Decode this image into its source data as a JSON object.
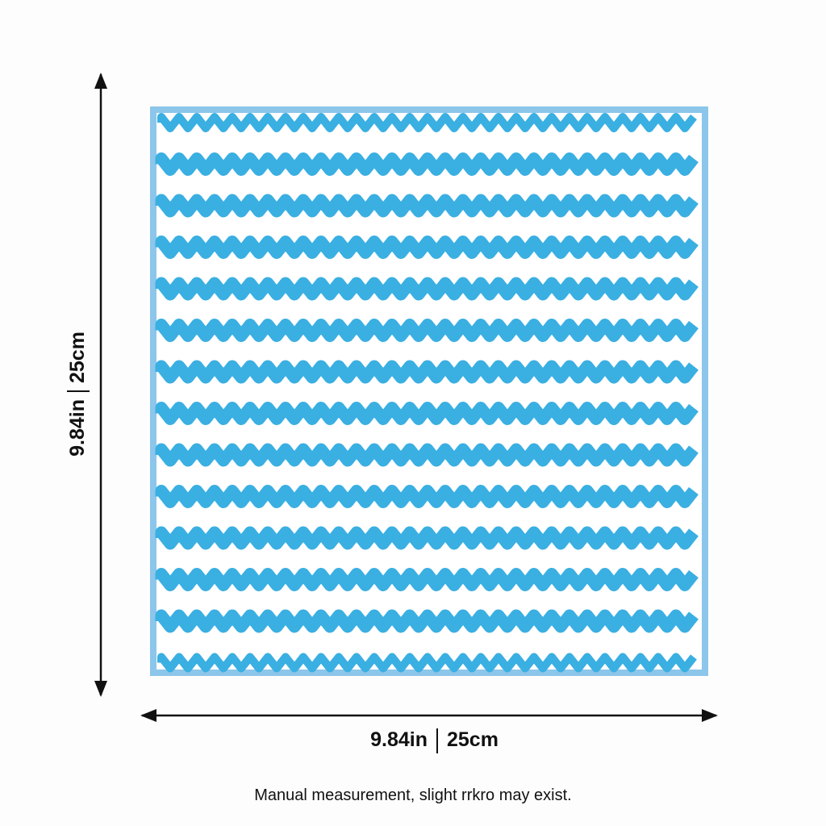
{
  "dimensions": {
    "height": {
      "imperial": "9.84in",
      "metric": "25cm"
    },
    "width": {
      "imperial": "9.84in",
      "metric": "25cm"
    }
  },
  "note": "Manual measurement, slight rrkro may exist."
}
